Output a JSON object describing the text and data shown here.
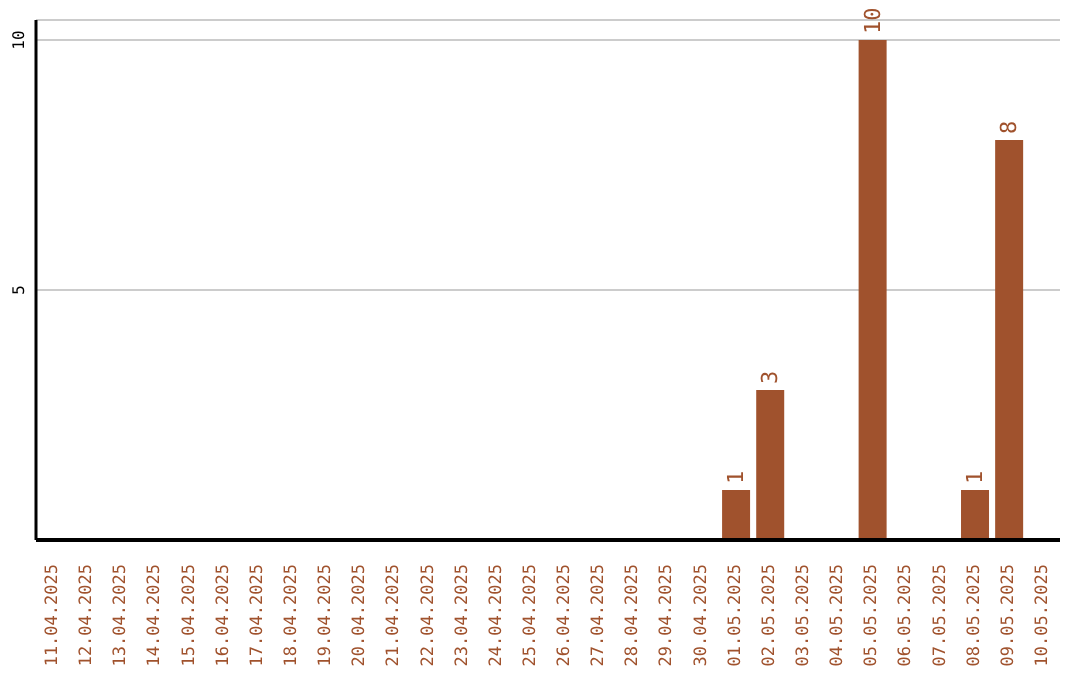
{
  "chart_data": {
    "type": "bar",
    "categories": [
      "11.04.2025",
      "12.04.2025",
      "13.04.2025",
      "14.04.2025",
      "15.04.2025",
      "16.04.2025",
      "17.04.2025",
      "18.04.2025",
      "19.04.2025",
      "20.04.2025",
      "21.04.2025",
      "22.04.2025",
      "23.04.2025",
      "24.04.2025",
      "25.04.2025",
      "26.04.2025",
      "27.04.2025",
      "28.04.2025",
      "29.04.2025",
      "30.04.2025",
      "01.05.2025",
      "02.05.2025",
      "03.05.2025",
      "04.05.2025",
      "05.05.2025",
      "06.05.2025",
      "07.05.2025",
      "08.05.2025",
      "09.05.2025",
      "10.05.2025"
    ],
    "values": [
      0,
      0,
      0,
      0,
      0,
      0,
      0,
      0,
      0,
      0,
      0,
      0,
      0,
      0,
      0,
      0,
      0,
      0,
      0,
      0,
      1,
      3,
      0,
      0,
      10,
      0,
      0,
      1,
      8,
      0
    ],
    "value_labels": [
      null,
      null,
      null,
      null,
      null,
      null,
      null,
      null,
      null,
      null,
      null,
      null,
      null,
      null,
      null,
      null,
      null,
      null,
      null,
      null,
      "1",
      "3",
      null,
      null,
      "10",
      null,
      null,
      "1",
      "8",
      null
    ],
    "color": "#a0522d",
    "ylim": [
      0,
      10.4
    ],
    "yticks": [
      5,
      10
    ],
    "grid": "y"
  }
}
